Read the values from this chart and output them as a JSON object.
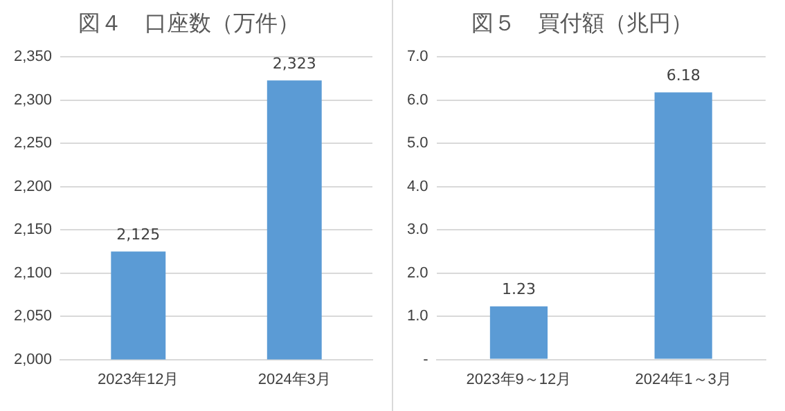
{
  "chart_data": [
    {
      "type": "bar",
      "title": "図４　口座数（万件）",
      "categories": [
        "2023年12月",
        "2024年3月"
      ],
      "values": [
        2125,
        2323
      ],
      "color": "#5b9bd5",
      "value_labels": [
        "2,125",
        "2,323"
      ],
      "ylim": [
        2000,
        2350
      ],
      "yticks": [
        {
          "value": 2000,
          "label": "2,000"
        },
        {
          "value": 2050,
          "label": "2,050"
        },
        {
          "value": 2100,
          "label": "2,100"
        },
        {
          "value": 2150,
          "label": "2,150"
        },
        {
          "value": 2200,
          "label": "2,200"
        },
        {
          "value": 2250,
          "label": "2,250"
        },
        {
          "value": 2300,
          "label": "2,300"
        },
        {
          "value": 2350,
          "label": "2,350"
        }
      ],
      "grid": "y",
      "legend": false
    },
    {
      "type": "bar",
      "title": "図５　買付額（兆円）",
      "categories": [
        "2023年9～12月",
        "2024年1～3月"
      ],
      "values": [
        1.23,
        6.18
      ],
      "color": "#5b9bd5",
      "data_labels": true,
      "ylim": [
        0,
        7
      ],
      "yticks": [
        {
          "value": 0,
          "label": "-"
        },
        {
          "value": 1,
          "label": "1.0"
        },
        {
          "value": 2,
          "label": "2.0"
        },
        {
          "value": 3,
          "label": "3.0"
        },
        {
          "value": 4,
          "label": "4.0"
        },
        {
          "value": 5,
          "label": "5.0"
        },
        {
          "value": 6,
          "label": "6.0"
        },
        {
          "value": 7,
          "label": "7.0"
        }
      ],
      "grid": "y",
      "legend": false
    }
  ]
}
